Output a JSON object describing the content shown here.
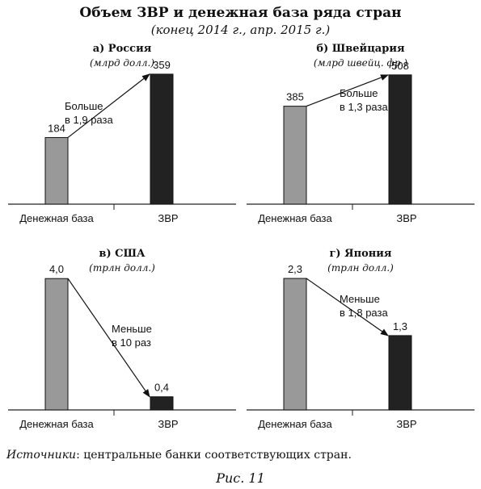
{
  "header": {
    "title": "Объем ЗВР и денежная база ряда стран",
    "subtitle": "(конец 2014 г., апр. 2015 г.)"
  },
  "footer": {
    "source_label": "Источники",
    "source_text": ": центральные банки соответствующих стран.",
    "figure_label": "Рис. 11"
  },
  "colors": {
    "base_bar": "#999999",
    "reserves_bar": "#222222",
    "axis": "#222222"
  },
  "chart_data": [
    {
      "type": "bar",
      "title": "а) Россия",
      "subtitle": "(млрд долл.)",
      "categories": [
        "Денежная база",
        "ЗВР"
      ],
      "values": [
        184,
        359
      ],
      "value_labels": [
        "184",
        "359"
      ],
      "ylim": [
        0,
        390
      ],
      "annotation_lines": [
        "Больше",
        "в 1,9 раза"
      ]
    },
    {
      "type": "bar",
      "title": "б) Швейцария",
      "subtitle": "(млрд швейц. фр.)",
      "categories": [
        "Денежная база",
        "ЗВР"
      ],
      "values": [
        385,
        508
      ],
      "value_labels": [
        "385",
        "508"
      ],
      "ylim": [
        0,
        555
      ],
      "annotation_lines": [
        "Больше",
        "в 1,3 раза"
      ]
    },
    {
      "type": "bar",
      "title": "в) США",
      "subtitle": "(трлн долл.)",
      "categories": [
        "Денежная база",
        "ЗВР"
      ],
      "values": [
        4.0,
        0.4
      ],
      "value_labels": [
        "4,0",
        "0,4"
      ],
      "ylim": [
        0,
        4.3
      ],
      "annotation_lines": [
        "Меньше",
        "в 10 раз"
      ]
    },
    {
      "type": "bar",
      "title": "г) Япония",
      "subtitle": "(трлн долл.)",
      "categories": [
        "Денежная база",
        "ЗВР"
      ],
      "values": [
        2.3,
        1.3
      ],
      "value_labels": [
        "2,3",
        "1,3"
      ],
      "ylim": [
        0,
        2.47
      ],
      "annotation_lines": [
        "Меньше",
        "в 1,8 раза"
      ]
    }
  ]
}
